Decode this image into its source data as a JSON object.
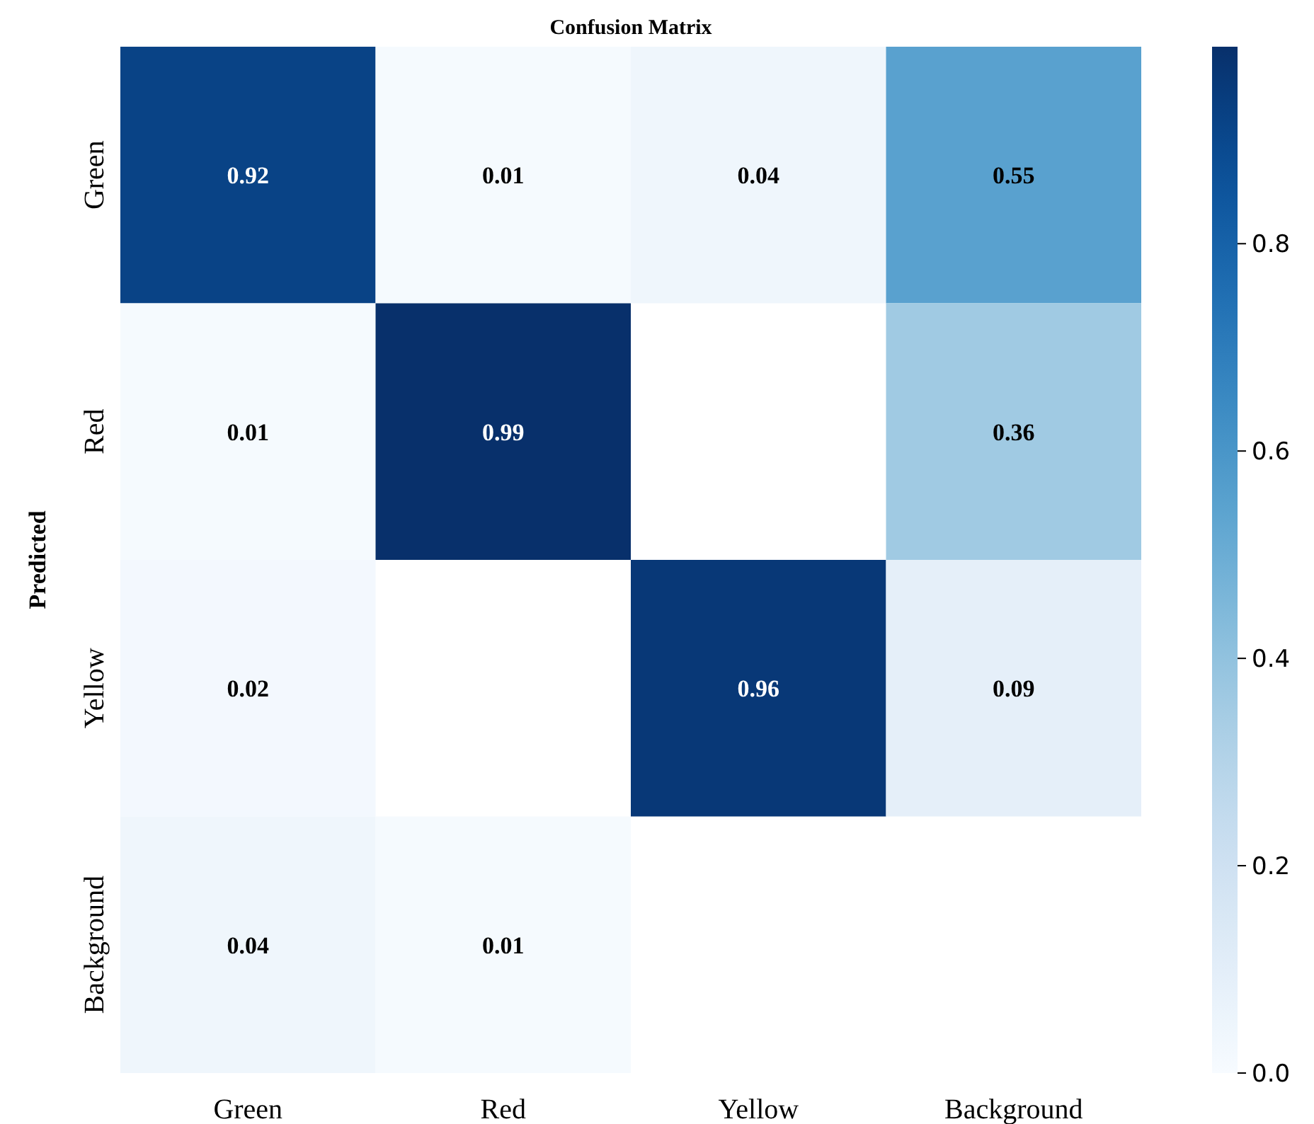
{
  "chart_data": {
    "type": "heatmap",
    "title": "Confusion Matrix",
    "ylabel": "Predicted",
    "categories": [
      "Green",
      "Red",
      "Yellow",
      "Background"
    ],
    "y_categories": [
      "Green",
      "Red",
      "Yellow",
      "Background"
    ],
    "cells": [
      [
        0.92,
        0.01,
        0.04,
        0.55
      ],
      [
        0.01,
        0.99,
        null,
        0.36
      ],
      [
        0.02,
        null,
        0.96,
        0.09
      ],
      [
        0.04,
        0.01,
        null,
        null
      ]
    ],
    "clim": [
      0,
      0.99
    ],
    "cticks": [
      {
        "value": 0,
        "label": "0.0"
      },
      {
        "value": 0.2,
        "label": "0.2"
      },
      {
        "value": 0.4,
        "label": "0.4"
      },
      {
        "value": 0.6,
        "label": "0.6"
      },
      {
        "value": 0.8,
        "label": "0.8"
      }
    ],
    "data_labels": true
  }
}
